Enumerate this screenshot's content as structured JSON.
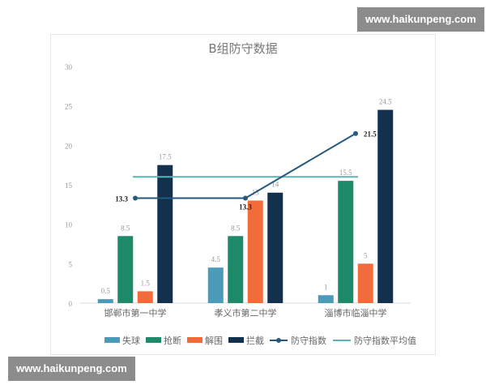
{
  "watermarks": {
    "top_right": "www.haikunpeng.com",
    "bottom_left": "www.haikunpeng.com"
  },
  "chart_data": {
    "type": "bar",
    "title": "B组防守数据",
    "categories": [
      "邯郸市第一中学",
      "孝义市第二中学",
      "淄博市临淄中学"
    ],
    "ylim": [
      0,
      30
    ],
    "yticks": [
      0,
      5,
      10,
      15,
      20,
      25,
      30
    ],
    "grid": false,
    "legend_position": "bottom",
    "series": [
      {
        "name": "失球",
        "type": "bar",
        "color": "#4a9bb8",
        "values": [
          0.5,
          4.5,
          1
        ]
      },
      {
        "name": "抢断",
        "type": "bar",
        "color": "#1f8a6a",
        "values": [
          8.5,
          8.5,
          15.5
        ]
      },
      {
        "name": "解围",
        "type": "bar",
        "color": "#f26b3a",
        "values": [
          1.5,
          13,
          5
        ]
      },
      {
        "name": "拦截",
        "type": "bar",
        "color": "#13304d",
        "values": [
          17.5,
          14,
          24.5
        ]
      },
      {
        "name": "防守指数",
        "type": "line",
        "color": "#265a7d",
        "values": [
          13.3,
          13.3,
          21.5
        ]
      },
      {
        "name": "防守指数平均值",
        "type": "line",
        "color": "#5ab4b8",
        "values": [
          16,
          16,
          16
        ]
      }
    ]
  }
}
